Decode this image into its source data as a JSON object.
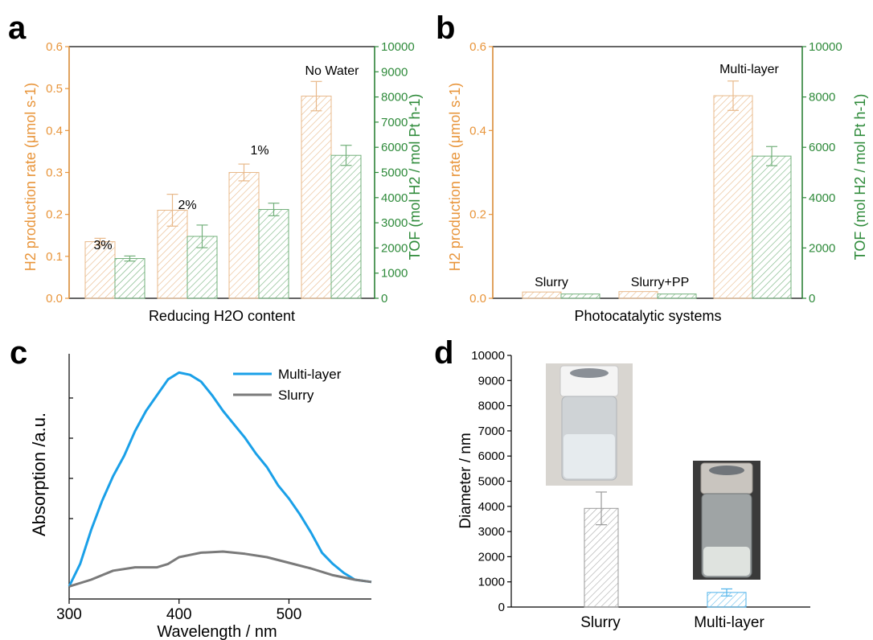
{
  "colors": {
    "orange": "#e8953b",
    "green": "#2e8a3a",
    "blue": "#1aa0e8",
    "gray": "#7a7a7a",
    "black": "#000000"
  },
  "panels": {
    "a": "a",
    "b": "b",
    "c": "c",
    "d": "d"
  },
  "chart_data": [
    {
      "panel": "a",
      "type": "bar",
      "categories": [
        "3%",
        "2%",
        "1%",
        "No Water"
      ],
      "xlabel": "Reducing H2O content",
      "ylabel_left": "H2 production rate (μmol s-1)",
      "ylabel_right": "TOF (mol H2 / mol Pt h-1)",
      "ylim_left": [
        0,
        0.6
      ],
      "ylim_right": [
        0,
        10000
      ],
      "left_ticks": [
        "0.0",
        "0.1",
        "0.2",
        "0.3",
        "0.4",
        "0.5",
        "0.6"
      ],
      "right_ticks": [
        "0",
        "1000",
        "2000",
        "3000",
        "4000",
        "5000",
        "6000",
        "7000",
        "8000",
        "9000",
        "10000"
      ],
      "series": [
        {
          "axis": "left",
          "values": [
            0.135,
            0.21,
            0.3,
            0.482
          ],
          "errors": [
            0.008,
            0.038,
            0.02,
            0.035
          ]
        },
        {
          "axis": "right",
          "values": [
            1580,
            2460,
            3530,
            5680
          ],
          "errors": [
            100,
            450,
            250,
            400
          ]
        }
      ]
    },
    {
      "panel": "b",
      "type": "bar",
      "categories": [
        "Slurry",
        "Slurry+PP",
        "Multi-layer"
      ],
      "xlabel": "Photocatalytic systems",
      "ylabel_left": "H2 production rate (μmol s-1)",
      "ylabel_right": "TOF (mol H2 / mol Pt h-1)",
      "ylim_left": [
        0,
        0.6
      ],
      "ylim_right": [
        0,
        10000
      ],
      "left_ticks": [
        "0.0",
        "0.2",
        "0.4",
        "0.6"
      ],
      "right_ticks": [
        "0",
        "2000",
        "4000",
        "6000",
        "8000",
        "10000"
      ],
      "series": [
        {
          "axis": "left",
          "values": [
            0.015,
            0.016,
            0.483
          ],
          "errors": [
            0,
            0,
            0.035
          ]
        },
        {
          "axis": "right",
          "values": [
            170,
            170,
            5650
          ],
          "errors": [
            0,
            0,
            380
          ]
        }
      ]
    },
    {
      "panel": "c",
      "type": "line",
      "xlabel": "Wavelength / nm",
      "ylabel": "Absorption /a.u.",
      "xlim": [
        300,
        575
      ],
      "x_ticks": [
        "300",
        "400",
        "500"
      ],
      "legend": "top-right",
      "series": [
        {
          "name": "Multi-layer",
          "x": [
            300,
            310,
            320,
            330,
            340,
            350,
            360,
            370,
            380,
            390,
            400,
            410,
            420,
            430,
            440,
            450,
            460,
            470,
            480,
            490,
            500,
            510,
            520,
            530,
            540,
            550,
            560,
            575
          ],
          "y": [
            0.02,
            0.12,
            0.27,
            0.4,
            0.51,
            0.6,
            0.71,
            0.8,
            0.87,
            0.94,
            0.97,
            0.96,
            0.93,
            0.87,
            0.8,
            0.74,
            0.68,
            0.61,
            0.55,
            0.47,
            0.41,
            0.34,
            0.26,
            0.17,
            0.12,
            0.08,
            0.05,
            0.04
          ]
        },
        {
          "name": "Slurry",
          "x": [
            300,
            320,
            340,
            360,
            380,
            390,
            400,
            410,
            420,
            440,
            460,
            480,
            500,
            520,
            540,
            560,
            575
          ],
          "y": [
            0.02,
            0.05,
            0.09,
            0.105,
            0.105,
            0.12,
            0.15,
            0.16,
            0.17,
            0.175,
            0.165,
            0.15,
            0.125,
            0.1,
            0.07,
            0.05,
            0.04
          ]
        }
      ]
    },
    {
      "panel": "d",
      "type": "bar",
      "categories": [
        "Slurry",
        "Multi-layer"
      ],
      "ylabel": "Diameter / nm",
      "ylim": [
        0,
        10000
      ],
      "y_ticks": [
        "0",
        "1000",
        "2000",
        "3000",
        "4000",
        "5000",
        "6000",
        "7000",
        "8000",
        "9000",
        "10000"
      ],
      "values": [
        3920,
        580
      ],
      "errors": [
        650,
        140
      ]
    }
  ]
}
